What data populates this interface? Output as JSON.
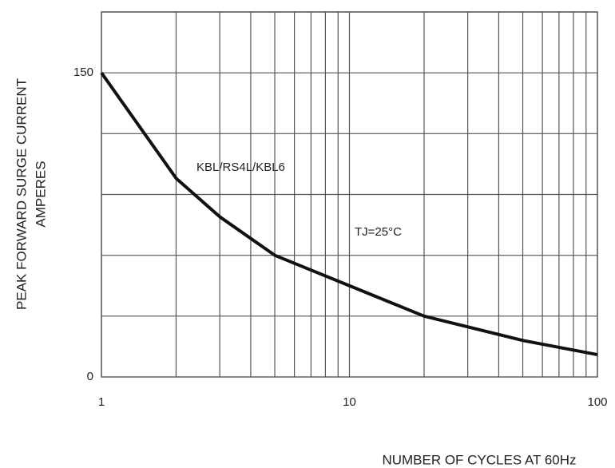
{
  "chart_data": {
    "type": "line",
    "x_label": "NUMBER OF CYCLES AT 60Hz",
    "y_label": [
      "PEAK FORWARD SURGE CURRENT",
      "AMPERES"
    ],
    "annotations": [
      "TJ=25°C"
    ],
    "x": [
      1,
      2,
      3,
      5,
      10,
      20,
      50,
      100
    ],
    "series": [
      {
        "name": "KBL/RS4L/KBL6",
        "color": "#111111",
        "values": [
          150,
          98,
          79,
          60,
          45,
          30,
          18,
          11
        ]
      }
    ],
    "xlim": [
      1,
      100
    ],
    "xticks": [
      1,
      10,
      100
    ],
    "log_x": true,
    "ylim": [
      0,
      180
    ],
    "yticks": [
      0,
      150
    ],
    "ygrid": [
      30,
      60,
      90,
      120,
      150,
      180
    ],
    "grid": true
  }
}
